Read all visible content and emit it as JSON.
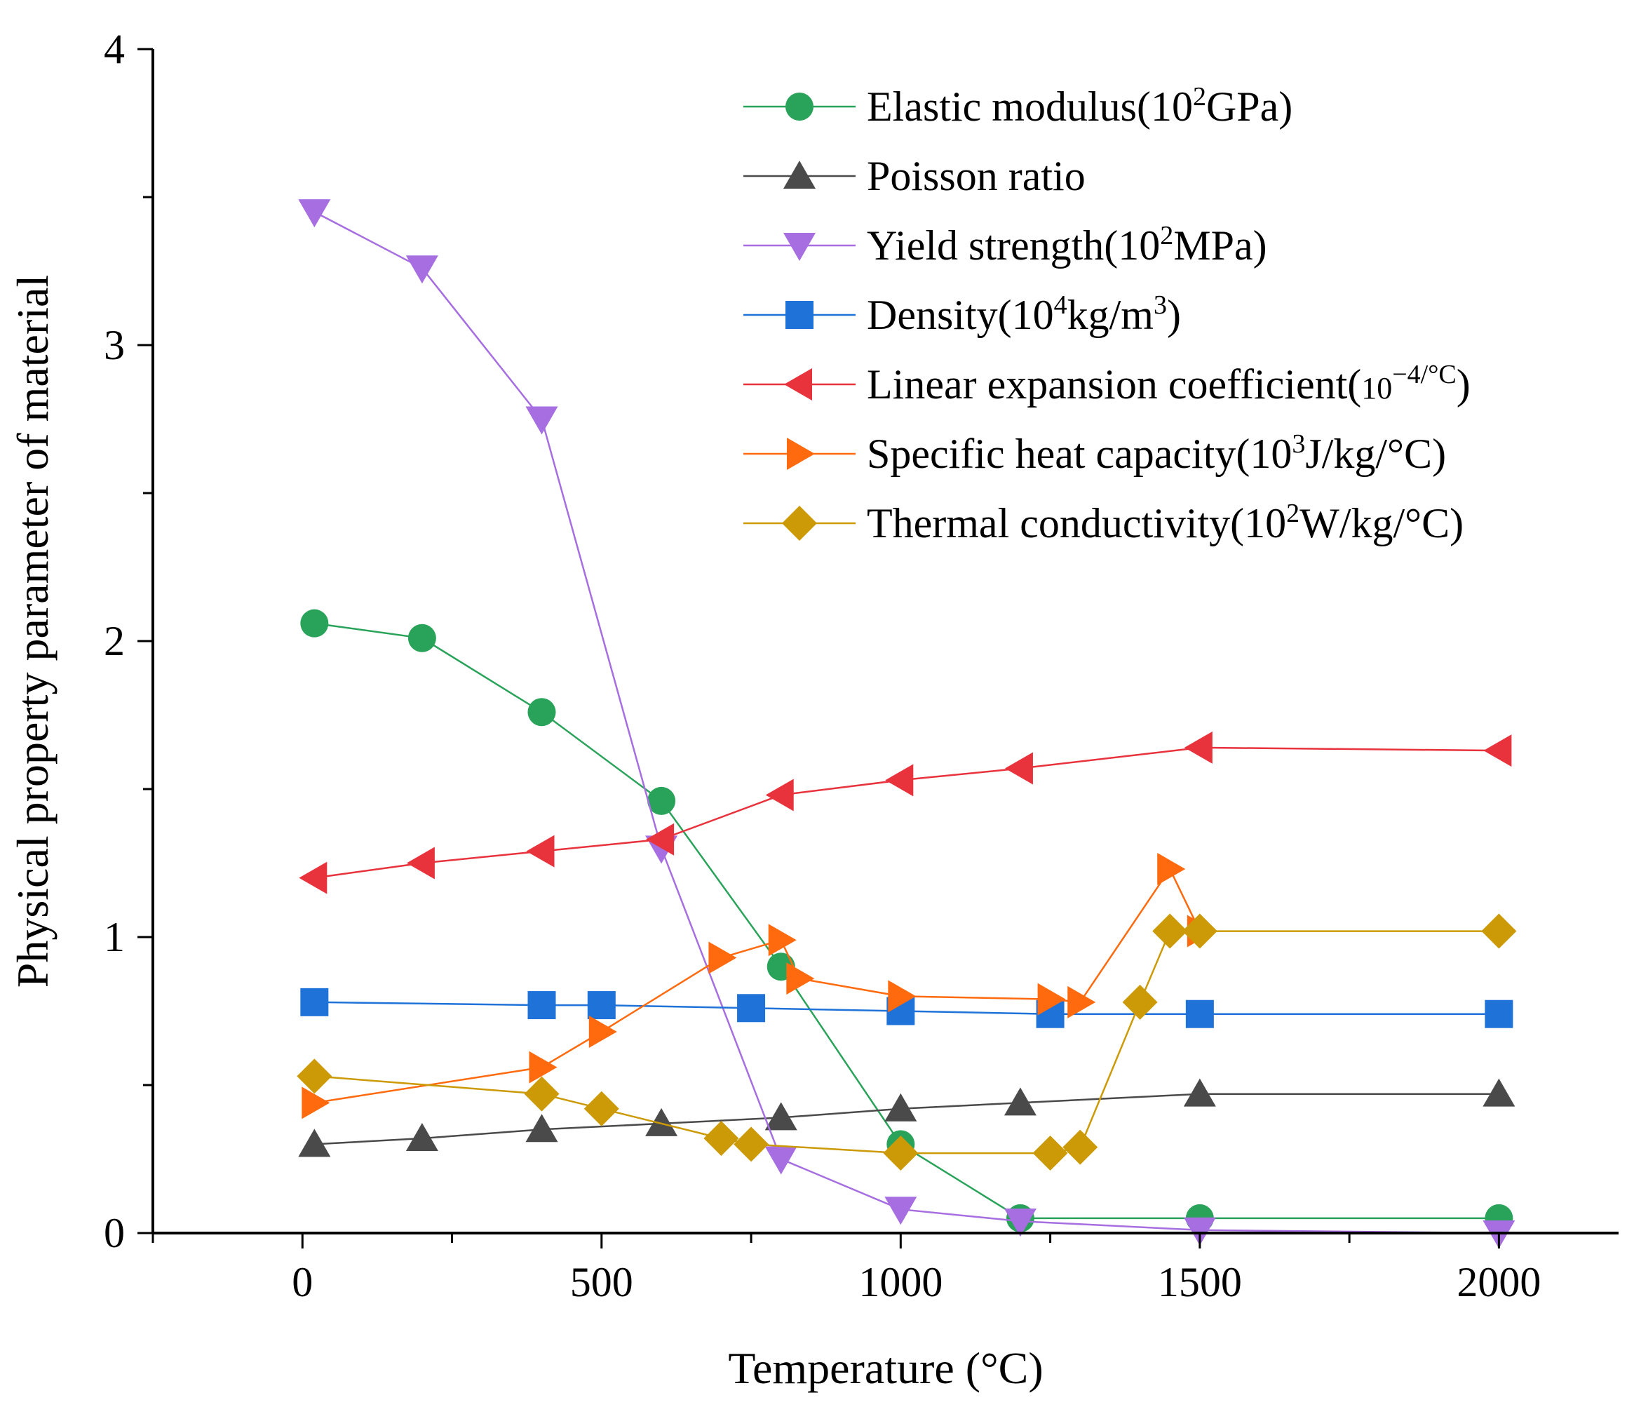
{
  "chart_data": {
    "type": "line",
    "title": "",
    "xlabel": "Temperature (°C)",
    "ylabel": "Physical property parameter of material",
    "xlim": [
      -250,
      2200
    ],
    "ylim": [
      0,
      4
    ],
    "xticks": [
      0,
      500,
      1000,
      1500,
      2000
    ],
    "xtick_labels": [
      "0",
      "500",
      "1000",
      "1500",
      "2000"
    ],
    "yticks": [
      0,
      1,
      2,
      3,
      4
    ],
    "ytick_labels": [
      "0",
      "1",
      "2",
      "3",
      "4"
    ],
    "legend_position": "top-right",
    "series": [
      {
        "name": "Elastic modulus(10²GPa)",
        "label_parts": [
          [
            "Elastic modulus(10",
            ""
          ],
          [
            "2",
            "sup"
          ],
          [
            "GPa)",
            ""
          ]
        ],
        "color": "#2aa35a",
        "marker": "circle",
        "points": [
          [
            20,
            2.06
          ],
          [
            200,
            2.01
          ],
          [
            400,
            1.76
          ],
          [
            600,
            1.46
          ],
          [
            800,
            0.9
          ],
          [
            1000,
            0.3
          ],
          [
            1200,
            0.05
          ],
          [
            1500,
            0.05
          ],
          [
            2000,
            0.05
          ]
        ]
      },
      {
        "name": "Poisson ratio",
        "label_parts": [
          [
            "Poisson ratio",
            ""
          ]
        ],
        "color": "#4a4a4a",
        "marker": "triangle-up",
        "points": [
          [
            20,
            0.3
          ],
          [
            200,
            0.32
          ],
          [
            400,
            0.35
          ],
          [
            600,
            0.37
          ],
          [
            800,
            0.39
          ],
          [
            1000,
            0.42
          ],
          [
            1200,
            0.44
          ],
          [
            1500,
            0.47
          ],
          [
            2000,
            0.47
          ]
        ]
      },
      {
        "name": "Yield strength(10²MPa)",
        "label_parts": [
          [
            "Yield strength(10",
            ""
          ],
          [
            "2",
            "sup"
          ],
          [
            "MPa)",
            ""
          ]
        ],
        "color": "#a66ee0",
        "marker": "triangle-down",
        "points": [
          [
            20,
            3.45
          ],
          [
            200,
            3.26
          ],
          [
            400,
            2.75
          ],
          [
            600,
            1.3
          ],
          [
            800,
            0.25
          ],
          [
            1000,
            0.08
          ],
          [
            1200,
            0.04
          ],
          [
            1500,
            0.01
          ],
          [
            2000,
            0.0
          ]
        ]
      },
      {
        "name": "Density(10⁴kg/m³)",
        "label_parts": [
          [
            "Density(10",
            ""
          ],
          [
            "4",
            "sup"
          ],
          [
            "kg/m",
            ""
          ],
          [
            "3",
            "sup"
          ],
          [
            ")",
            ""
          ]
        ],
        "color": "#1f72d8",
        "marker": "square",
        "points": [
          [
            20,
            0.78
          ],
          [
            400,
            0.77
          ],
          [
            500,
            0.77
          ],
          [
            750,
            0.76
          ],
          [
            1000,
            0.75
          ],
          [
            1250,
            0.74
          ],
          [
            1500,
            0.74
          ],
          [
            2000,
            0.74
          ]
        ]
      },
      {
        "name": "Linear expansion coefficient(10⁻⁴/°C)",
        "label_parts": [
          [
            "Linear expansion coefficient(",
            ""
          ],
          [
            "10",
            "small"
          ],
          [
            "−4/°C",
            "sup"
          ],
          [
            ")",
            ""
          ]
        ],
        "color": "#e8323c",
        "marker": "triangle-left",
        "points": [
          [
            20,
            1.2
          ],
          [
            200,
            1.25
          ],
          [
            400,
            1.29
          ],
          [
            600,
            1.33
          ],
          [
            800,
            1.48
          ],
          [
            1000,
            1.53
          ],
          [
            1200,
            1.57
          ],
          [
            1500,
            1.64
          ],
          [
            2000,
            1.63
          ]
        ]
      },
      {
        "name": "Specific heat capacity(10³J/kg/°C)",
        "label_parts": [
          [
            "Specific heat capacity(10",
            ""
          ],
          [
            "3",
            "sup"
          ],
          [
            "J/kg/°C)",
            ""
          ]
        ],
        "color": "#ff6a0e",
        "marker": "triangle-right",
        "points": [
          [
            20,
            0.44
          ],
          [
            400,
            0.56
          ],
          [
            500,
            0.68
          ],
          [
            700,
            0.93
          ],
          [
            800,
            0.99
          ],
          [
            830,
            0.86
          ],
          [
            1000,
            0.8
          ],
          [
            1250,
            0.79
          ],
          [
            1300,
            0.78
          ],
          [
            1450,
            1.23
          ],
          [
            1500,
            1.02
          ]
        ]
      },
      {
        "name": "Thermal conductivity(10²W/kg/°C)",
        "label_parts": [
          [
            "Thermal conductivity(10",
            ""
          ],
          [
            "2",
            "sup"
          ],
          [
            "W/kg/°C)",
            ""
          ]
        ],
        "color": "#cc9a06",
        "marker": "diamond",
        "points": [
          [
            20,
            0.53
          ],
          [
            400,
            0.47
          ],
          [
            500,
            0.42
          ],
          [
            700,
            0.32
          ],
          [
            750,
            0.3
          ],
          [
            1000,
            0.27
          ],
          [
            1250,
            0.27
          ],
          [
            1300,
            0.29
          ],
          [
            1400,
            0.78
          ],
          [
            1450,
            1.02
          ],
          [
            1500,
            1.02
          ],
          [
            2000,
            1.02
          ]
        ]
      }
    ]
  }
}
